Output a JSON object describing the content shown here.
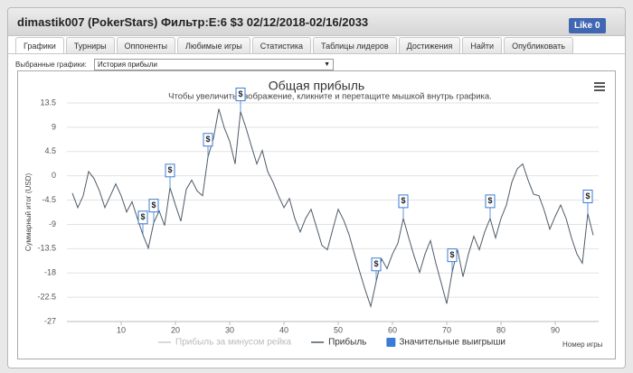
{
  "header": {
    "title": "dimastik007 (PokerStars) Фильтр:E:6 $3 02/12/2018-02/16/2033",
    "like_label": "Like",
    "like_count": 0
  },
  "tabs": [
    "Графики",
    "Турниры",
    "Оппоненты",
    "Любимые игры",
    "Статистика",
    "Таблицы лидеров",
    "Достижения",
    "Найти",
    "Опубликовать"
  ],
  "active_tab": 0,
  "selector": {
    "label": "Выбранные графики:",
    "value": "История прибыли"
  },
  "chart_data": {
    "type": "line",
    "title": "Общая прибыль",
    "subtitle": "Чтобы увеличить изображение, кликните и перетащите мышкой внутрь графика.",
    "y_label": "Суммарный итог (USD)",
    "x_label": "Номер игры",
    "x": [
      1,
      2,
      3,
      4,
      5,
      6,
      7,
      8,
      9,
      10,
      11,
      12,
      13,
      14,
      15,
      16,
      17,
      18,
      19,
      20,
      21,
      22,
      23,
      24,
      25,
      26,
      27,
      28,
      29,
      30,
      31,
      32,
      33,
      34,
      35,
      36,
      37,
      38,
      39,
      40,
      41,
      42,
      43,
      44,
      45,
      46,
      47,
      48,
      49,
      50,
      51,
      52,
      53,
      54,
      55,
      56,
      57,
      58,
      59,
      60,
      61,
      62,
      63,
      64,
      65,
      66,
      67,
      68,
      69,
      70,
      71,
      72,
      73,
      74,
      75,
      76,
      77,
      78,
      79,
      80,
      81,
      82,
      83,
      84,
      85,
      86,
      87,
      88,
      89,
      90,
      91,
      92,
      93,
      94,
      95,
      96,
      97
    ],
    "series": [
      {
        "name": "Прибыль за минусом рейка",
        "color": "#cccccc",
        "visible": false
      },
      {
        "name": "Прибыль",
        "color": "#4e5b68",
        "values": [
          -3.2,
          -5.9,
          -3.7,
          0.8,
          -0.5,
          -2.8,
          -5.9,
          -3.7,
          -1.5,
          -3.7,
          -6.7,
          -4.8,
          -7.9,
          -10.9,
          -13.4,
          -8.7,
          -6.5,
          -9.2,
          -2.2,
          -5.4,
          -8.4,
          -2.5,
          -0.8,
          -2.8,
          -3.7,
          3.5,
          6.9,
          12.4,
          8.9,
          6.4,
          2.2,
          11.9,
          8.9,
          5.5,
          2.2,
          4.7,
          0.8,
          -1.2,
          -3.7,
          -5.9,
          -4.2,
          -7.9,
          -10.4,
          -7.9,
          -6.2,
          -9.5,
          -12.9,
          -13.7,
          -9.9,
          -6.2,
          -8.2,
          -10.9,
          -14.5,
          -17.9,
          -21.2,
          -24.2,
          -19.6,
          -15.4,
          -17.2,
          -14.5,
          -12.5,
          -7.9,
          -11.5,
          -14.9,
          -17.9,
          -14.5,
          -12.0,
          -16.2,
          -19.9,
          -23.7,
          -17.9,
          -13.7,
          -18.7,
          -14.5,
          -11.2,
          -13.7,
          -10.4,
          -7.9,
          -11.5,
          -7.9,
          -5.4,
          -1.2,
          1.3,
          2.2,
          -0.8,
          -3.4,
          -3.7,
          -6.5,
          -9.9,
          -7.5,
          -5.4,
          -7.9,
          -11.5,
          -14.5,
          -16.2,
          -7,
          -11
        ]
      },
      {
        "name": "Значительные выигрыши",
        "color": "#3a7bd5",
        "marker": "flag",
        "flag_label": "$",
        "x": [
          14,
          16,
          19,
          26,
          32,
          57,
          62,
          71,
          78,
          96
        ],
        "values": [
          -10.9,
          -8.7,
          -2.2,
          3.5,
          11.9,
          -19.6,
          -7.9,
          -17.9,
          -7.9,
          -7
        ]
      }
    ],
    "xlim": [
      0,
      98
    ],
    "xticks": [
      10,
      20,
      30,
      40,
      50,
      60,
      70,
      80,
      90
    ],
    "ylim": [
      -27,
      13.5
    ],
    "yticks": [
      13.5,
      9,
      4.5,
      0,
      -4.5,
      -9,
      -13.5,
      -18,
      -22.5,
      -27
    ],
    "grid": true
  }
}
